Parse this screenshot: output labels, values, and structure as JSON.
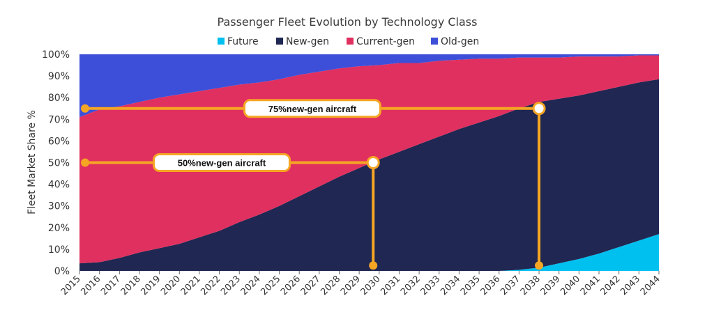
{
  "chart_data": {
    "type": "area",
    "stacked": true,
    "title": "Passenger Fleet Evolution by Technology Class",
    "xlabel": "",
    "ylabel": "Fleet Market Share %",
    "ylim": [
      0,
      100
    ],
    "yticks": [
      "0%",
      "10%",
      "20%",
      "30%",
      "40%",
      "50%",
      "60%",
      "70%",
      "80%",
      "90%",
      "100%"
    ],
    "legend_position": "top-center",
    "categories": [
      "2015",
      "2016",
      "2017",
      "2018",
      "2019",
      "2020",
      "2021",
      "2022",
      "2023",
      "2024",
      "2025",
      "2026",
      "2027",
      "2028",
      "2029",
      "2030",
      "2031",
      "2032",
      "2033",
      "2034",
      "2035",
      "2036",
      "2037",
      "2038",
      "2039",
      "2040",
      "2041",
      "2042",
      "2043",
      "2044"
    ],
    "series": [
      {
        "name": "Future",
        "color": "#00c0f0",
        "values": [
          0,
          0,
          0,
          0,
          0,
          0,
          0,
          0,
          0,
          0,
          0,
          0,
          0,
          0,
          0,
          0,
          0,
          0,
          0,
          0,
          0,
          0,
          0.5,
          1.5,
          3.5,
          5.5,
          8,
          11,
          14,
          17
        ]
      },
      {
        "name": "New-gen",
        "color": "#1f2752",
        "values": [
          3.5,
          4,
          6,
          8.5,
          10.5,
          12.5,
          15.5,
          18.5,
          22.5,
          26,
          30,
          34.5,
          39,
          43.5,
          47.5,
          51.5,
          55,
          58.5,
          62,
          65.5,
          68.5,
          71.5,
          74.5,
          76.5,
          76,
          75.5,
          75,
          74,
          73,
          71.5
        ]
      },
      {
        "name": "Current-gen",
        "color": "#e0305f",
        "values": [
          67.5,
          70.5,
          70,
          69.5,
          69.5,
          69,
          67.5,
          66,
          63.5,
          61,
          58.5,
          56,
          53,
          50,
          47,
          43.5,
          41,
          37.5,
          35,
          32,
          29.5,
          26.5,
          23.5,
          20.5,
          19,
          18,
          16,
          14,
          12.5,
          11
        ]
      },
      {
        "name": "Old-gen",
        "color": "#3d4fd8",
        "values": [
          29,
          25.5,
          24,
          22,
          20,
          18.5,
          17,
          15.5,
          14,
          13,
          11.5,
          9.5,
          8,
          6.5,
          5.5,
          5,
          4,
          4,
          3,
          2.5,
          2,
          2,
          1.5,
          1.5,
          1.5,
          1,
          1,
          1,
          0.5,
          0.5
        ]
      }
    ],
    "annotations": [
      {
        "label": "75%new-gen aircraft",
        "value": 75,
        "year": 2038,
        "color": "#f5a623"
      },
      {
        "label": "50%new-gen aircraft",
        "value": 50,
        "year": 2029.7,
        "color": "#f5a623"
      }
    ]
  }
}
